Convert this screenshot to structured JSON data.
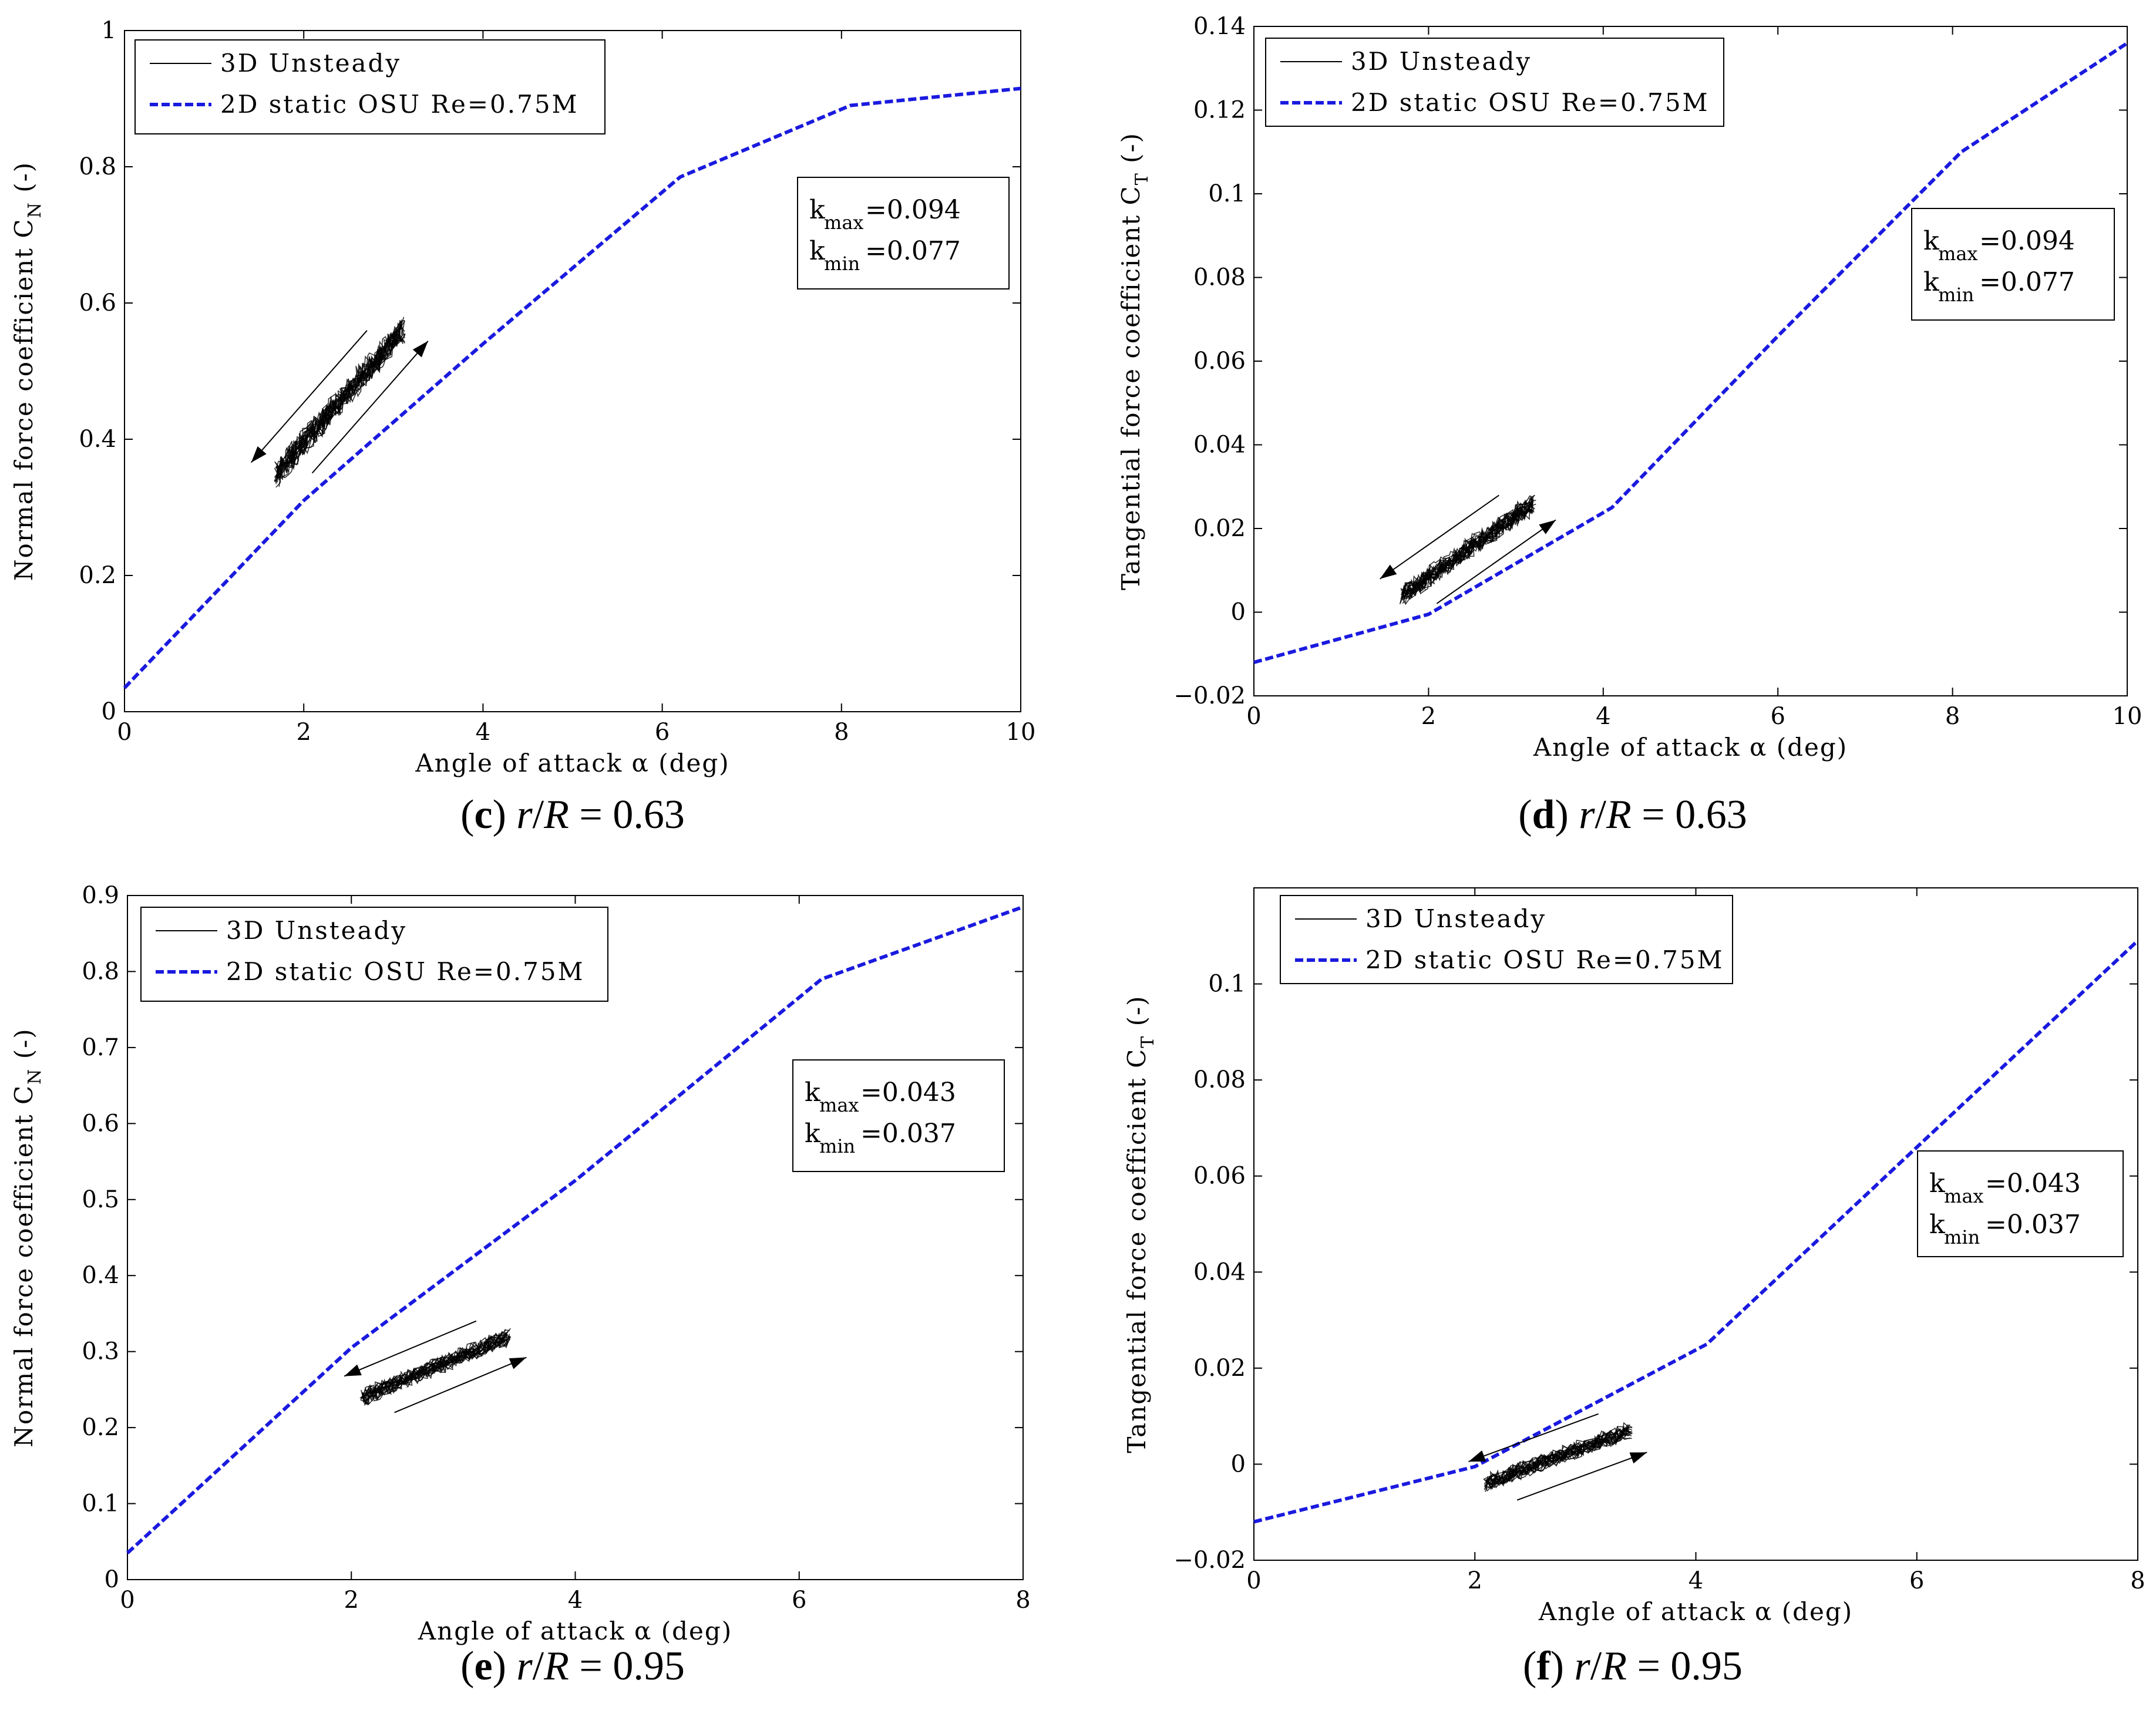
{
  "chart_data": [
    {
      "type": "line",
      "caption": {
        "letter": "c",
        "var_r": "r",
        "var_R": "R",
        "value": "= 0.63"
      },
      "xlabel": "Angle of attack α (deg)",
      "ylabel": "Normal force coefficient C",
      "ylabel_sub": "N",
      "ylabel_unit": "(-)",
      "xlim": [
        0,
        10
      ],
      "ylim": [
        0,
        1
      ],
      "xticks": [
        0,
        2,
        4,
        6,
        8,
        10
      ],
      "yticks": [
        0,
        0.2,
        0.4,
        0.6,
        0.8,
        1
      ],
      "ytick_labels": [
        "0",
        "0.2",
        "0.4",
        "0.6",
        "0.8",
        "1"
      ],
      "legend": [
        "3D Unsteady",
        "2D static OSU Re=0.75M"
      ],
      "k_max": "=0.094",
      "k_min": "=0.077",
      "series": [
        {
          "name": "2D static OSU Re=0.75M",
          "x": [
            0,
            2,
            4,
            6.2,
            8.1,
            10
          ],
          "y": [
            0.035,
            0.31,
            0.54,
            0.785,
            0.89,
            0.915
          ]
        },
        {
          "name": "3D Unsteady",
          "x": [
            1.7,
            3.1
          ],
          "y": [
            0.35,
            0.56
          ]
        }
      ]
    },
    {
      "type": "line",
      "caption": {
        "letter": "d",
        "var_r": "r",
        "var_R": "R",
        "value": "= 0.63"
      },
      "xlabel": "Angle of attack α (deg)",
      "ylabel": "Tangential force coefficient C",
      "ylabel_sub": "T",
      "ylabel_unit": "(-)",
      "xlim": [
        0,
        10
      ],
      "ylim": [
        -0.02,
        0.14
      ],
      "xticks": [
        0,
        2,
        4,
        6,
        8,
        10
      ],
      "yticks": [
        -0.02,
        0,
        0.02,
        0.04,
        0.06,
        0.08,
        0.1,
        0.12,
        0.14
      ],
      "ytick_labels": [
        "−0.02",
        "0",
        "0.02",
        "0.04",
        "0.06",
        "0.08",
        "0.1",
        "0.12",
        "0.14"
      ],
      "legend": [
        "3D Unsteady",
        "2D static OSU Re=0.75M"
      ],
      "k_max": "=0.094",
      "k_min": "=0.077",
      "series": [
        {
          "name": "2D static OSU Re=0.75M",
          "x": [
            0,
            2,
            4.1,
            6,
            8.1,
            10
          ],
          "y": [
            -0.012,
            -0.0005,
            0.025,
            0.066,
            0.11,
            0.136
          ]
        },
        {
          "name": "3D Unsteady",
          "x": [
            1.7,
            3.2
          ],
          "y": [
            0.004,
            0.026
          ]
        }
      ]
    },
    {
      "type": "line",
      "caption": {
        "letter": "e",
        "var_r": "r",
        "var_R": "R",
        "value": "= 0.95"
      },
      "xlabel": "Angle of attack α (deg)",
      "ylabel": "Normal force coefficient C",
      "ylabel_sub": "N",
      "ylabel_unit": "(-)",
      "xlim": [
        0,
        8
      ],
      "ylim": [
        0,
        0.9
      ],
      "xticks": [
        0,
        2,
        4,
        6,
        8
      ],
      "yticks": [
        0,
        0.1,
        0.2,
        0.3,
        0.4,
        0.5,
        0.6,
        0.7,
        0.8,
        0.9
      ],
      "ytick_labels": [
        "0",
        "0.1",
        "0.2",
        "0.3",
        "0.4",
        "0.5",
        "0.6",
        "0.7",
        "0.8",
        "0.9"
      ],
      "legend": [
        "3D Unsteady",
        "2D static OSU Re=0.75M"
      ],
      "k_max": "=0.043",
      "k_min": "=0.037",
      "series": [
        {
          "name": "2D static OSU Re=0.75M",
          "x": [
            0,
            2,
            4,
            6.2,
            8
          ],
          "y": [
            0.035,
            0.305,
            0.525,
            0.79,
            0.885
          ]
        },
        {
          "name": "3D Unsteady",
          "x": [
            2.1,
            3.4
          ],
          "y": [
            0.24,
            0.32
          ]
        }
      ]
    },
    {
      "type": "line",
      "caption": {
        "letter": "f",
        "var_r": "r",
        "var_R": "R",
        "value": "= 0.95"
      },
      "xlabel": "Angle of attack α (deg)",
      "ylabel": "Tangential force coefficient C",
      "ylabel_sub": "T",
      "ylabel_unit": "(-)",
      "xlim": [
        0,
        8
      ],
      "ylim": [
        -0.02,
        0.12
      ],
      "xticks": [
        0,
        2,
        4,
        6,
        8
      ],
      "yticks": [
        -0.02,
        0,
        0.02,
        0.04,
        0.06,
        0.08,
        0.1
      ],
      "ytick_labels": [
        "−0.02",
        "0",
        "0.02",
        "0.04",
        "0.06",
        "0.08",
        "0.1"
      ],
      "legend": [
        "3D Unsteady",
        "2D static OSU Re=0.75M"
      ],
      "k_max": "=0.043",
      "k_min": "=0.037",
      "series": [
        {
          "name": "2D static OSU Re=0.75M",
          "x": [
            0,
            2,
            4.1,
            6,
            8
          ],
          "y": [
            -0.012,
            -0.0005,
            0.025,
            0.066,
            0.109
          ]
        },
        {
          "name": "3D Unsteady",
          "x": [
            2.1,
            3.4
          ],
          "y": [
            -0.004,
            0.007
          ]
        }
      ]
    }
  ],
  "colors": {
    "static_line": "#1a1adf",
    "unsteady_line": "#000000",
    "axis": "#000000"
  }
}
